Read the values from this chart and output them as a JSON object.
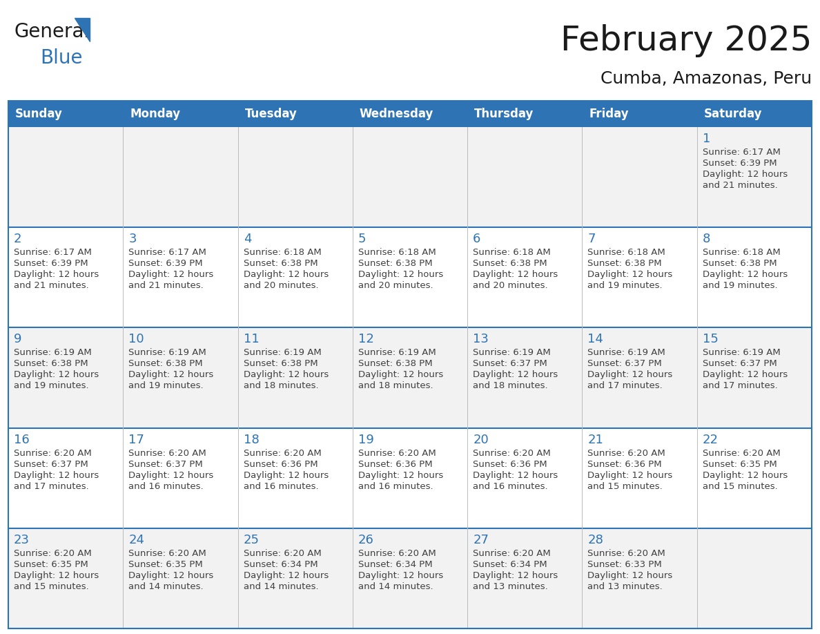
{
  "title": "February 2025",
  "subtitle": "Cumba, Amazonas, Peru",
  "days_of_week": [
    "Sunday",
    "Monday",
    "Tuesday",
    "Wednesday",
    "Thursday",
    "Friday",
    "Saturday"
  ],
  "header_bg_color": "#2E74B5",
  "header_text_color": "#FFFFFF",
  "cell_bg_white": "#FFFFFF",
  "cell_bg_gray": "#F2F2F2",
  "row_separator_color": "#2E74B5",
  "col_separator_color": "#D0D0D0",
  "title_color": "#1A1A1A",
  "subtitle_color": "#1A1A1A",
  "day_number_color": "#2E74B5",
  "detail_text_color": "#404040",
  "logo_general_color": "#1A1A1A",
  "logo_blue_color": "#2E74B5",
  "row_bg_colors": [
    "#F2F2F2",
    "#FFFFFF",
    "#F2F2F2",
    "#FFFFFF",
    "#F2F2F2"
  ],
  "calendar_data": [
    [
      null,
      null,
      null,
      null,
      null,
      null,
      {
        "day": 1,
        "sunrise": "6:17 AM",
        "sunset": "6:39 PM",
        "daylight_suffix": "21 minutes."
      }
    ],
    [
      {
        "day": 2,
        "sunrise": "6:17 AM",
        "sunset": "6:39 PM",
        "daylight_suffix": "21 minutes."
      },
      {
        "day": 3,
        "sunrise": "6:17 AM",
        "sunset": "6:39 PM",
        "daylight_suffix": "21 minutes."
      },
      {
        "day": 4,
        "sunrise": "6:18 AM",
        "sunset": "6:38 PM",
        "daylight_suffix": "20 minutes."
      },
      {
        "day": 5,
        "sunrise": "6:18 AM",
        "sunset": "6:38 PM",
        "daylight_suffix": "20 minutes."
      },
      {
        "day": 6,
        "sunrise": "6:18 AM",
        "sunset": "6:38 PM",
        "daylight_suffix": "20 minutes."
      },
      {
        "day": 7,
        "sunrise": "6:18 AM",
        "sunset": "6:38 PM",
        "daylight_suffix": "19 minutes."
      },
      {
        "day": 8,
        "sunrise": "6:18 AM",
        "sunset": "6:38 PM",
        "daylight_suffix": "19 minutes."
      }
    ],
    [
      {
        "day": 9,
        "sunrise": "6:19 AM",
        "sunset": "6:38 PM",
        "daylight_suffix": "19 minutes."
      },
      {
        "day": 10,
        "sunrise": "6:19 AM",
        "sunset": "6:38 PM",
        "daylight_suffix": "19 minutes."
      },
      {
        "day": 11,
        "sunrise": "6:19 AM",
        "sunset": "6:38 PM",
        "daylight_suffix": "18 minutes."
      },
      {
        "day": 12,
        "sunrise": "6:19 AM",
        "sunset": "6:38 PM",
        "daylight_suffix": "18 minutes."
      },
      {
        "day": 13,
        "sunrise": "6:19 AM",
        "sunset": "6:37 PM",
        "daylight_suffix": "18 minutes."
      },
      {
        "day": 14,
        "sunrise": "6:19 AM",
        "sunset": "6:37 PM",
        "daylight_suffix": "17 minutes."
      },
      {
        "day": 15,
        "sunrise": "6:19 AM",
        "sunset": "6:37 PM",
        "daylight_suffix": "17 minutes."
      }
    ],
    [
      {
        "day": 16,
        "sunrise": "6:20 AM",
        "sunset": "6:37 PM",
        "daylight_suffix": "17 minutes."
      },
      {
        "day": 17,
        "sunrise": "6:20 AM",
        "sunset": "6:37 PM",
        "daylight_suffix": "16 minutes."
      },
      {
        "day": 18,
        "sunrise": "6:20 AM",
        "sunset": "6:36 PM",
        "daylight_suffix": "16 minutes."
      },
      {
        "day": 19,
        "sunrise": "6:20 AM",
        "sunset": "6:36 PM",
        "daylight_suffix": "16 minutes."
      },
      {
        "day": 20,
        "sunrise": "6:20 AM",
        "sunset": "6:36 PM",
        "daylight_suffix": "16 minutes."
      },
      {
        "day": 21,
        "sunrise": "6:20 AM",
        "sunset": "6:36 PM",
        "daylight_suffix": "15 minutes."
      },
      {
        "day": 22,
        "sunrise": "6:20 AM",
        "sunset": "6:35 PM",
        "daylight_suffix": "15 minutes."
      }
    ],
    [
      {
        "day": 23,
        "sunrise": "6:20 AM",
        "sunset": "6:35 PM",
        "daylight_suffix": "15 minutes."
      },
      {
        "day": 24,
        "sunrise": "6:20 AM",
        "sunset": "6:35 PM",
        "daylight_suffix": "14 minutes."
      },
      {
        "day": 25,
        "sunrise": "6:20 AM",
        "sunset": "6:34 PM",
        "daylight_suffix": "14 minutes."
      },
      {
        "day": 26,
        "sunrise": "6:20 AM",
        "sunset": "6:34 PM",
        "daylight_suffix": "14 minutes."
      },
      {
        "day": 27,
        "sunrise": "6:20 AM",
        "sunset": "6:34 PM",
        "daylight_suffix": "13 minutes."
      },
      {
        "day": 28,
        "sunrise": "6:20 AM",
        "sunset": "6:33 PM",
        "daylight_suffix": "13 minutes."
      },
      null
    ]
  ]
}
